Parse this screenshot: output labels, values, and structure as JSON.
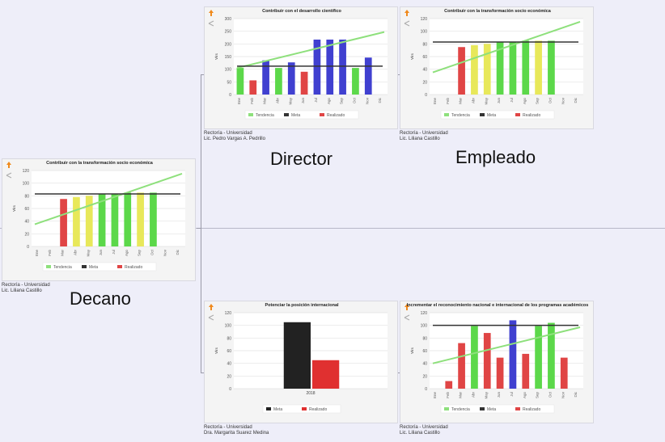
{
  "roles": {
    "director": "Director",
    "empleado": "Empleado",
    "decano": "Decano"
  },
  "panels": [
    {
      "caption": [
        "Rectoría - Universidad",
        "Lic. Liliana Castillo"
      ],
      "chart": {
        "type": "bar",
        "title": "Contribuir con la transformación socio económica",
        "y_label": "Vlrs",
        "categories": [
          "Ene",
          "Feb",
          "Mar",
          "Abr",
          "May",
          "Jun",
          "Jul",
          "Ago",
          "Sep",
          "Oct",
          "Nov",
          "Dic"
        ],
        "ylim": [
          0,
          120
        ],
        "yticks": [
          0,
          20,
          40,
          60,
          80,
          100,
          120
        ],
        "grid": true,
        "series": [
          {
            "name": "Tendencia",
            "kind": "trend",
            "color": "#8ee07c",
            "values": [
              35,
              115
            ]
          },
          {
            "name": "Meta",
            "kind": "target",
            "color": "#333333",
            "values": [
              83
            ]
          },
          {
            "name": "Realizado",
            "kind": "bar",
            "color": "#e04545",
            "colors": [
              null,
              null,
              "#e04545",
              "#e8e85a",
              "#e8e85a",
              "#5cd84a",
              "#5cd84a",
              "#5cd84a",
              "#e8e85a",
              "#5cd84a",
              null,
              null
            ],
            "values": [
              null,
              null,
              75,
              78,
              80,
              83,
              83,
              85,
              85,
              85,
              null,
              null
            ]
          }
        ]
      }
    },
    {
      "caption": [
        "Rectoría - Universidad",
        "Lic. Pedro Vargas A. Pedrillo"
      ],
      "chart": {
        "type": "bar",
        "title": "Contribuir con el desarrollo científico",
        "y_label": "Vlrs",
        "categories": [
          "Ene",
          "Feb",
          "Mar",
          "Abr",
          "May",
          "Jun",
          "Jul",
          "Ago",
          "Sep",
          "Oct",
          "Nov",
          "Dic"
        ],
        "ylim": [
          0,
          300
        ],
        "yticks": [
          0,
          50,
          100,
          150,
          200,
          250,
          300
        ],
        "grid": true,
        "series": [
          {
            "name": "Tendencia",
            "kind": "trend",
            "color": "#8ee07c",
            "values": [
              105,
              247
            ]
          },
          {
            "name": "Meta",
            "kind": "target",
            "color": "#333333",
            "values": [
              112
            ]
          },
          {
            "name": "Realizado",
            "kind": "bar",
            "color": "#e04545",
            "colors": [
              "#5cd84a",
              "#e04545",
              "#4040d0",
              "#5cd84a",
              "#4040d0",
              "#e04545",
              "#4040d0",
              "#4040d0",
              "#4040d0",
              "#5cd84a",
              "#4040d0",
              null
            ],
            "values": [
              105,
              56,
              135,
              105,
              127,
              90,
              217,
              217,
              217,
              105,
              146,
              null
            ]
          }
        ]
      }
    },
    {
      "caption": [
        "Rectoría - Universidad",
        "Lic. Liliana Castillo"
      ],
      "chart": {
        "type": "bar",
        "title": "Contribuir con la transformación socio económica",
        "y_label": "Vlrs",
        "categories": [
          "Ene",
          "Feb",
          "Mar",
          "Abr",
          "May",
          "Jun",
          "Jul",
          "Ago",
          "Sep",
          "Oct",
          "Nov",
          "Dic"
        ],
        "ylim": [
          0,
          120
        ],
        "yticks": [
          0,
          20,
          40,
          60,
          80,
          100,
          120
        ],
        "grid": true,
        "series": [
          {
            "name": "Tendencia",
            "kind": "trend",
            "color": "#8ee07c",
            "values": [
              35,
              115
            ]
          },
          {
            "name": "Meta",
            "kind": "target",
            "color": "#333333",
            "values": [
              83
            ]
          },
          {
            "name": "Realizado",
            "kind": "bar",
            "color": "#e04545",
            "colors": [
              null,
              null,
              "#e04545",
              "#e8e85a",
              "#e8e85a",
              "#5cd84a",
              "#5cd84a",
              "#5cd84a",
              "#e8e85a",
              "#5cd84a",
              null,
              null
            ],
            "values": [
              null,
              null,
              75,
              78,
              80,
              83,
              83,
              85,
              85,
              85,
              null,
              null
            ]
          }
        ]
      }
    },
    {
      "caption": [
        "Rectoría - Universidad",
        "Dra. Margarita Suarez Medina"
      ],
      "chart": {
        "type": "bar",
        "title": "Potenciar la posición internacional",
        "y_label": "Vlrs",
        "categories": [
          "2018"
        ],
        "ylim": [
          0,
          120
        ],
        "yticks": [
          0,
          20,
          40,
          60,
          80,
          100,
          120
        ],
        "grid": true,
        "series": [
          {
            "name": "Meta",
            "kind": "bar",
            "color": "#222222",
            "values": [
              105
            ]
          },
          {
            "name": "Realizado",
            "kind": "bar",
            "color": "#e03030",
            "values": [
              45
            ]
          }
        ]
      }
    },
    {
      "caption": [
        "Rectoría - Universidad",
        "Lic. Liliana Castillo"
      ],
      "chart": {
        "type": "bar",
        "title": "Incrementar el reconocimiento nacional e internacional de los programas académicos",
        "y_label": "Vlrs",
        "categories": [
          "Ene",
          "Feb",
          "Mar",
          "Abr",
          "May",
          "Jun",
          "Jul",
          "Ago",
          "Sep",
          "Oct",
          "Nov",
          "Dic"
        ],
        "ylim": [
          0,
          120
        ],
        "yticks": [
          0,
          20,
          40,
          60,
          80,
          100,
          120
        ],
        "grid": true,
        "series": [
          {
            "name": "Tendencia",
            "kind": "trend",
            "color": "#8ee07c",
            "values": [
              40,
              97
            ]
          },
          {
            "name": "Meta",
            "kind": "target",
            "color": "#333333",
            "values": [
              100
            ]
          },
          {
            "name": "Realizado",
            "kind": "bar",
            "color": "#e04545",
            "colors": [
              null,
              "#e04545",
              "#e04545",
              "#5cd84a",
              "#e04545",
              "#e04545",
              "#4040d0",
              "#e04545",
              "#5cd84a",
              "#5cd84a",
              "#e04545",
              null
            ],
            "values": [
              null,
              12,
              72,
              99,
              88,
              49,
              108,
              55,
              99,
              104,
              49,
              null
            ]
          }
        ]
      }
    }
  ]
}
